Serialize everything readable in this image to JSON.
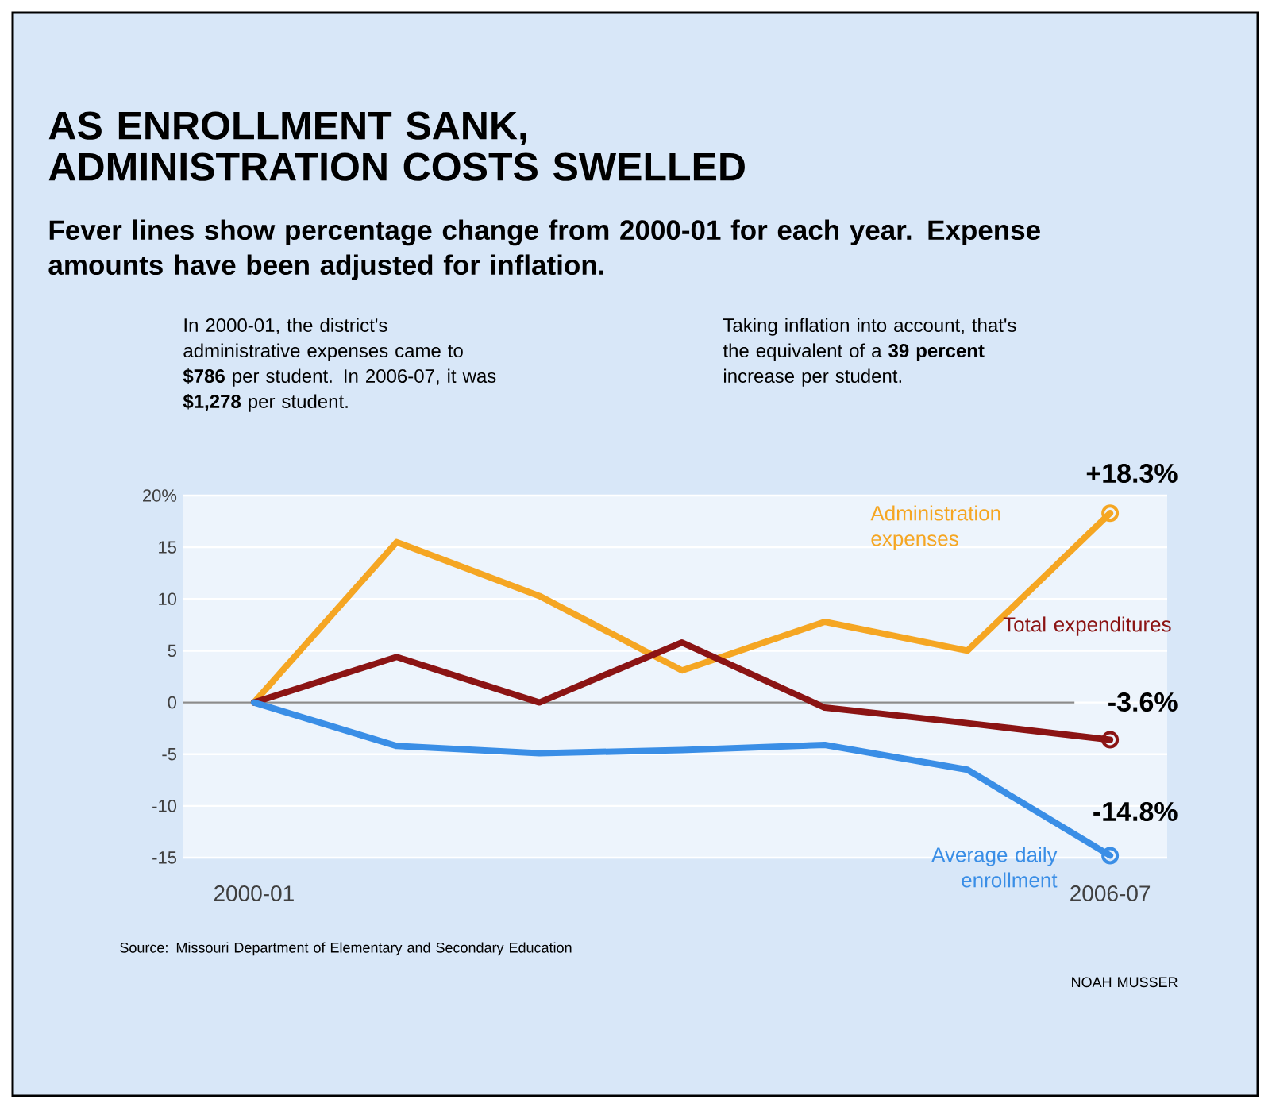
{
  "chart_data": {
    "type": "line",
    "title": "AS ENROLLMENT SANK, ADMINISTRATION COSTS SWELLED",
    "subtitle": "Fever lines show percentage change from 2000-01 for each year. Expense amounts have been adjusted for inflation.",
    "categories": [
      "2000-01",
      null,
      null,
      null,
      null,
      null,
      "2006-07"
    ],
    "series": [
      {
        "name": "Administration expenses",
        "color": "#f5a623",
        "values": [
          0,
          15.5,
          10.3,
          3.1,
          7.8,
          5.0,
          18.3
        ],
        "value_labels": [
          null,
          null,
          null,
          null,
          null,
          null,
          "+18.3%"
        ]
      },
      {
        "name": "Total expenditures",
        "color": "#8b1414",
        "values": [
          0,
          4.4,
          0,
          5.8,
          -0.5,
          -2.0,
          -3.6
        ],
        "value_labels": [
          null,
          null,
          null,
          null,
          null,
          null,
          "-3.6%"
        ]
      },
      {
        "name": "Average daily enrollment",
        "color": "#3a8ee6",
        "values": [
          0,
          -4.2,
          -4.9,
          -4.6,
          -4.1,
          -6.5,
          -14.8
        ],
        "value_labels": [
          null,
          null,
          null,
          null,
          null,
          null,
          "-14.8%"
        ]
      }
    ],
    "ylim": [
      -15,
      20
    ],
    "yticks": [
      {
        "value": 20,
        "label": "20%"
      },
      15,
      10,
      5,
      0,
      -5,
      -10,
      -15
    ],
    "grid": "y",
    "line_style": "solid",
    "ref_lines": [
      {
        "axis": "y",
        "value": 0,
        "color": "#8c8c8c"
      }
    ],
    "annotations": [
      "In 2000-01, the district's administrative expenses came to **$786** per student. In 2006-07, it was **$1,278** per student.",
      "Taking inflation into account, that's the equivalent of a **39 percent** increase per student.",
      "Source: Missouri Department of Elementary and Secondary Education",
      "NOAH MUSSER"
    ]
  }
}
